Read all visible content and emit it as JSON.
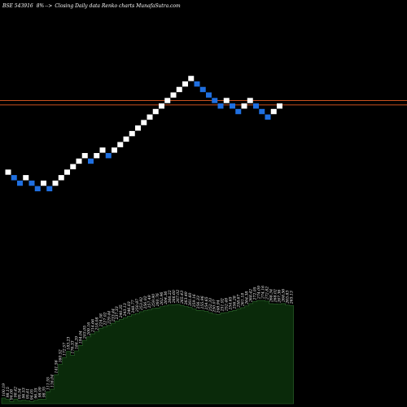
{
  "header": {
    "ticker": "BSE 543916",
    "change": "8%",
    "arrow": "-->",
    "description": "Closing Daily data  Renko  charts MunafaSutra.com"
  },
  "colors": {
    "background": "#000000",
    "up_brick": "#ffffff",
    "down_brick": "#1f6fe0",
    "reference_line": "#c8501e",
    "volume_fill": "#0a2a0a",
    "volume_edge": "#2e6b2e"
  },
  "chart_data": {
    "type": "renko",
    "bricks": [
      {
        "dir": "up",
        "level": 16
      },
      {
        "dir": "down",
        "level": 15
      },
      {
        "dir": "down",
        "level": 14
      },
      {
        "dir": "up",
        "level": 15
      },
      {
        "dir": "down",
        "level": 14
      },
      {
        "dir": "down",
        "level": 13
      },
      {
        "dir": "up",
        "level": 14
      },
      {
        "dir": "down",
        "level": 13
      },
      {
        "dir": "up",
        "level": 14
      },
      {
        "dir": "up",
        "level": 15
      },
      {
        "dir": "up",
        "level": 16
      },
      {
        "dir": "up",
        "level": 17
      },
      {
        "dir": "up",
        "level": 18
      },
      {
        "dir": "up",
        "level": 19
      },
      {
        "dir": "down",
        "level": 18
      },
      {
        "dir": "up",
        "level": 19
      },
      {
        "dir": "up",
        "level": 20
      },
      {
        "dir": "down",
        "level": 19
      },
      {
        "dir": "up",
        "level": 20
      },
      {
        "dir": "up",
        "level": 21
      },
      {
        "dir": "up",
        "level": 22
      },
      {
        "dir": "up",
        "level": 23
      },
      {
        "dir": "up",
        "level": 24
      },
      {
        "dir": "up",
        "level": 25
      },
      {
        "dir": "up",
        "level": 26
      },
      {
        "dir": "up",
        "level": 27
      },
      {
        "dir": "up",
        "level": 28
      },
      {
        "dir": "up",
        "level": 29
      },
      {
        "dir": "up",
        "level": 30
      },
      {
        "dir": "up",
        "level": 31
      },
      {
        "dir": "up",
        "level": 32
      },
      {
        "dir": "up",
        "level": 33
      },
      {
        "dir": "down",
        "level": 32
      },
      {
        "dir": "down",
        "level": 31
      },
      {
        "dir": "down",
        "level": 30
      },
      {
        "dir": "down",
        "level": 29
      },
      {
        "dir": "down",
        "level": 28
      },
      {
        "dir": "up",
        "level": 29
      },
      {
        "dir": "down",
        "level": 28
      },
      {
        "dir": "down",
        "level": 27
      },
      {
        "dir": "up",
        "level": 28
      },
      {
        "dir": "up",
        "level": 29
      },
      {
        "dir": "down",
        "level": 28
      },
      {
        "dir": "down",
        "level": 27
      },
      {
        "dir": "down",
        "level": 26
      },
      {
        "dir": "up",
        "level": 27
      },
      {
        "dir": "up",
        "level": 28
      }
    ],
    "reference_lines": [
      29,
      28.2
    ],
    "volume_labels": [
      "100.19",
      "98.15",
      "94.08",
      "98.42",
      "95.54",
      "96.53",
      "95.61",
      "94.05",
      "96.35",
      "98.09",
      "98.35",
      "111.55",
      "116.04",
      "141.56",
      "160.52",
      "172.57",
      "183.23",
      "176.33",
      "184.29",
      "194.04",
      "203.05",
      "209.16",
      "214.66",
      "218.08",
      "224.58",
      "227.02",
      "229.44",
      "233.44",
      "237.33",
      "240.35",
      "243.13",
      "246.03",
      "248.77",
      "250.87",
      "253.92",
      "256.02",
      "257.49",
      "259.90",
      "260.76",
      "262.96",
      "264.36",
      "266.22",
      "266.60",
      "267.02",
      "265.43",
      "263.49",
      "261.60",
      "259.16",
      "256.33",
      "255.96",
      "254.65",
      "252.33",
      "250.07",
      "248.94",
      "251.92",
      "252.48",
      "254.65",
      "256.28",
      "258.67",
      "261.18",
      "264.38",
      "268.42",
      "272.05",
      "274.09",
      "274.16",
      "272.82",
      "268.34",
      "268.02",
      "267.36",
      "268.56",
      "265.83",
      "265.13"
    ]
  }
}
